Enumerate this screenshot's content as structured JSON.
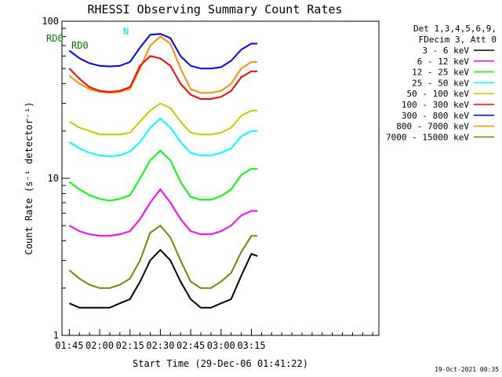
{
  "chart_data": {
    "type": "line",
    "title": "RHESSI Observing Summary Count Rates",
    "xlabel": "Start Time (29-Dec-06 01:41:22)",
    "ylabel": "Count Rate (s⁻¹ detector⁻¹)",
    "y_scale": "log",
    "ylim": [
      1,
      100
    ],
    "xlim_minutes": [
      41.37,
      198.0
    ],
    "x_tick_labels": [
      "01:45",
      "02:00",
      "02:15",
      "02:30",
      "02:45",
      "03:00",
      "03:15"
    ],
    "x_tick_minutes": [
      45,
      60,
      75,
      90,
      105,
      120,
      135
    ],
    "y_tick_labels": [
      "1",
      "10",
      "100"
    ],
    "y_tick_values": [
      1,
      10,
      100
    ],
    "grid": false,
    "legend_position": "right",
    "legend_header": [
      "Det 1,3,4,5,6,9,",
      "FDecim 3, Att 0"
    ],
    "annotations": [
      {
        "text": "RD0",
        "color": "#007f00"
      },
      {
        "text": "RD0",
        "color": "#007f00"
      },
      {
        "text": "N",
        "color": "#00e0e0"
      }
    ],
    "timestamp": "19-Oct-2021 00:35",
    "x": [
      45,
      50,
      55,
      60,
      65,
      70,
      75,
      80,
      85,
      90,
      95,
      100,
      105,
      110,
      115,
      120,
      125,
      130,
      135,
      138
    ],
    "series": [
      {
        "name": "3 - 6 keV",
        "color": "#000000",
        "values": [
          1.6,
          1.5,
          1.5,
          1.5,
          1.5,
          1.6,
          1.7,
          2.2,
          3.0,
          3.5,
          3.0,
          2.2,
          1.7,
          1.5,
          1.5,
          1.6,
          1.7,
          2.4,
          3.3,
          3.2
        ]
      },
      {
        "name": "6 - 12 keV",
        "color": "#ff00ff",
        "values": [
          5.0,
          4.6,
          4.4,
          4.3,
          4.3,
          4.4,
          4.6,
          5.5,
          7.0,
          8.5,
          7.0,
          5.5,
          4.6,
          4.4,
          4.4,
          4.6,
          5.0,
          5.8,
          6.2,
          6.2
        ]
      },
      {
        "name": "12 - 25 keV",
        "color": "#00ff00",
        "values": [
          9.5,
          8.5,
          7.8,
          7.4,
          7.2,
          7.4,
          7.8,
          10.0,
          13.0,
          15.0,
          13.0,
          9.5,
          7.6,
          7.3,
          7.3,
          7.7,
          8.5,
          10.5,
          11.5,
          11.5
        ]
      },
      {
        "name": "25 - 50 keV",
        "color": "#00ffff",
        "values": [
          17.0,
          15.5,
          14.5,
          14.0,
          13.8,
          14.0,
          14.8,
          17.0,
          21.0,
          24.0,
          21.0,
          17.0,
          14.5,
          14.0,
          14.0,
          14.5,
          15.5,
          18.5,
          20.0,
          20.0
        ]
      },
      {
        "name": "50 - 100 keV",
        "color": "#c8c800",
        "values": [
          23.0,
          21.0,
          20.0,
          19.0,
          19.0,
          19.0,
          19.5,
          23.0,
          27.0,
          30.0,
          28.0,
          23.0,
          19.5,
          19.0,
          19.0,
          19.5,
          21.0,
          25.0,
          27.0,
          27.0
        ]
      },
      {
        "name": "100 - 300 keV",
        "color": "#ff0000",
        "values": [
          50.0,
          43.0,
          38.0,
          36.0,
          35.5,
          36.0,
          38.0,
          52.0,
          60.0,
          58.0,
          52.0,
          40.0,
          34.0,
          32.0,
          32.0,
          33.0,
          36.0,
          44.0,
          48.0,
          48.0
        ]
      },
      {
        "name": "300 - 800 keV",
        "color": "#0000ff",
        "values": [
          65.0,
          58.0,
          54.0,
          52.0,
          51.5,
          52.0,
          55.0,
          68.0,
          82.0,
          83.0,
          78.0,
          60.0,
          52.0,
          50.0,
          50.0,
          51.0,
          56.0,
          66.0,
          72.0,
          72.0
        ]
      },
      {
        "name": "800 - 7000 keV",
        "color": "#ff8c00",
        "values": [
          45.0,
          40.0,
          37.0,
          35.5,
          35.0,
          35.5,
          37.0,
          50.0,
          70.0,
          80.0,
          72.0,
          50.0,
          37.0,
          35.0,
          35.0,
          36.0,
          40.0,
          50.0,
          55.0,
          55.0
        ]
      },
      {
        "name": "7000 - 15000 keV",
        "color": "#808000",
        "values": [
          2.6,
          2.3,
          2.1,
          2.0,
          2.0,
          2.1,
          2.3,
          3.0,
          4.5,
          5.0,
          4.2,
          3.0,
          2.2,
          2.0,
          2.0,
          2.2,
          2.5,
          3.4,
          4.3,
          4.3
        ]
      }
    ]
  }
}
